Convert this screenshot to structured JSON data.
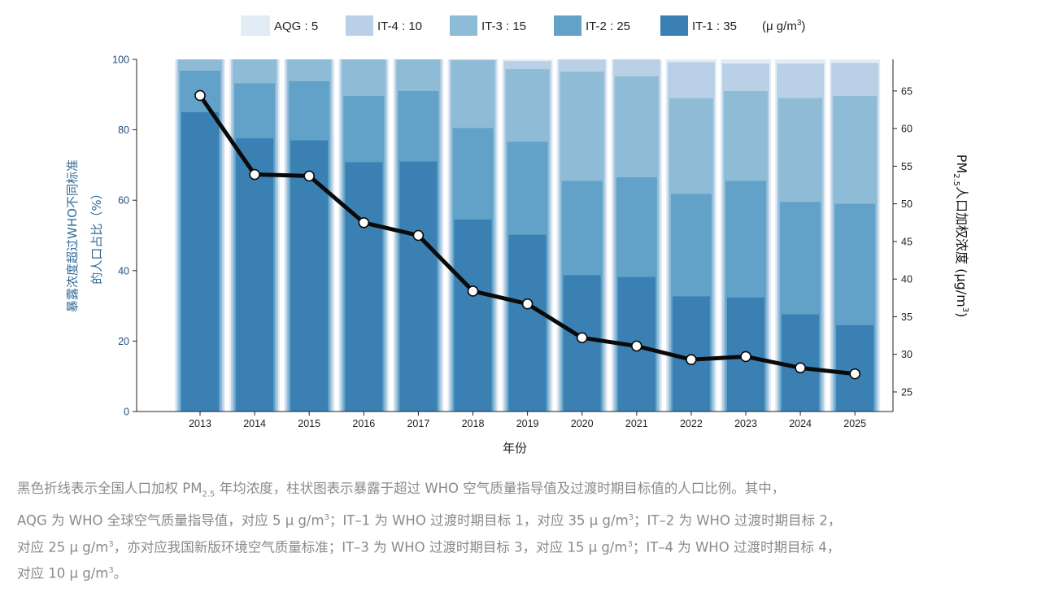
{
  "chart_data": {
    "type": "bar",
    "categories": [
      "2013",
      "2014",
      "2015",
      "2016",
      "2017",
      "2018",
      "2019",
      "2020",
      "2021",
      "2022",
      "2023",
      "2024",
      "2025"
    ],
    "series": [
      {
        "name": "AQG : 5",
        "color": "#e3ebf5",
        "values": [
          100,
          100,
          100,
          100,
          100,
          100,
          100,
          100,
          100,
          100,
          100,
          100,
          100
        ]
      },
      {
        "name": "IT-4 : 10",
        "color": "#b9d0e6",
        "values": [
          100,
          100,
          100,
          100,
          100,
          100,
          99.5,
          100,
          100,
          99.2,
          98.8,
          98.8,
          99.0
        ]
      },
      {
        "name": "IT-3 : 15",
        "color": "#8ebcd6",
        "values": [
          100,
          100,
          100,
          100,
          100,
          99.7,
          97.2,
          96.5,
          95.2,
          89.0,
          91.0,
          89.0,
          89.6
        ]
      },
      {
        "name": "IT-2 : 25",
        "color": "#62a2c9",
        "values": [
          96.8,
          93.2,
          93.8,
          89.6,
          91.0,
          80.5,
          76.6,
          65.5,
          66.5,
          61.8,
          65.5,
          59.5,
          59.0
        ]
      },
      {
        "name": "IT-1 : 35",
        "color": "#3a80b2",
        "values": [
          85.0,
          77.6,
          77.0,
          70.8,
          71.0,
          54.5,
          50.2,
          38.7,
          38.2,
          32.7,
          32.4,
          27.6,
          24.5
        ]
      }
    ],
    "line": {
      "name": "PM2.5 人口加权浓度",
      "color": "#0a0a0a",
      "values": [
        64.4,
        53.9,
        53.7,
        47.5,
        45.8,
        38.4,
        36.7,
        32.2,
        31.1,
        29.3,
        29.7,
        28.2,
        27.4
      ]
    },
    "ylim_left": [
      0,
      100
    ],
    "yticks_left": [
      0,
      20,
      40,
      60,
      80,
      100
    ],
    "ylim_right": [
      22.4,
      69.2
    ],
    "yticks_right": [
      25,
      30,
      35,
      40,
      45,
      50,
      55,
      60,
      65
    ],
    "ylabel_left": [
      "暴露浓度超过WHO不同标准",
      "的人口占比（%）"
    ],
    "ylabel_right": "PM2.5人口加权浓度 (μg/m3)",
    "xlabel": "年份",
    "legend_unit": "(μ g/m3)",
    "legend_position": "top-center",
    "grid": false
  },
  "caption": {
    "line1": "黑色折线表示全国人口加权 PM2.5 年均浓度，柱状图表示暴露于超过 WHO 空气质量指导值及过渡时期目标值的人口比例。其中，",
    "line2": "AQG 为 WHO 全球空气质量指导值，对应 5 μ g/m3；IT–1 为 WHO 过渡时期目标 1，对应 35 μ g/m3；IT–2 为 WHO 过渡时期目标 2，",
    "line3": "对应 25 μ g/m3，亦对应我国新版环境空气质量标准；IT–3 为 WHO 过渡时期目标 3，对应 15 μ g/m3；IT–4 为 WHO 过渡时期目标 4，",
    "line4": "对应 10 μ g/m3。"
  }
}
